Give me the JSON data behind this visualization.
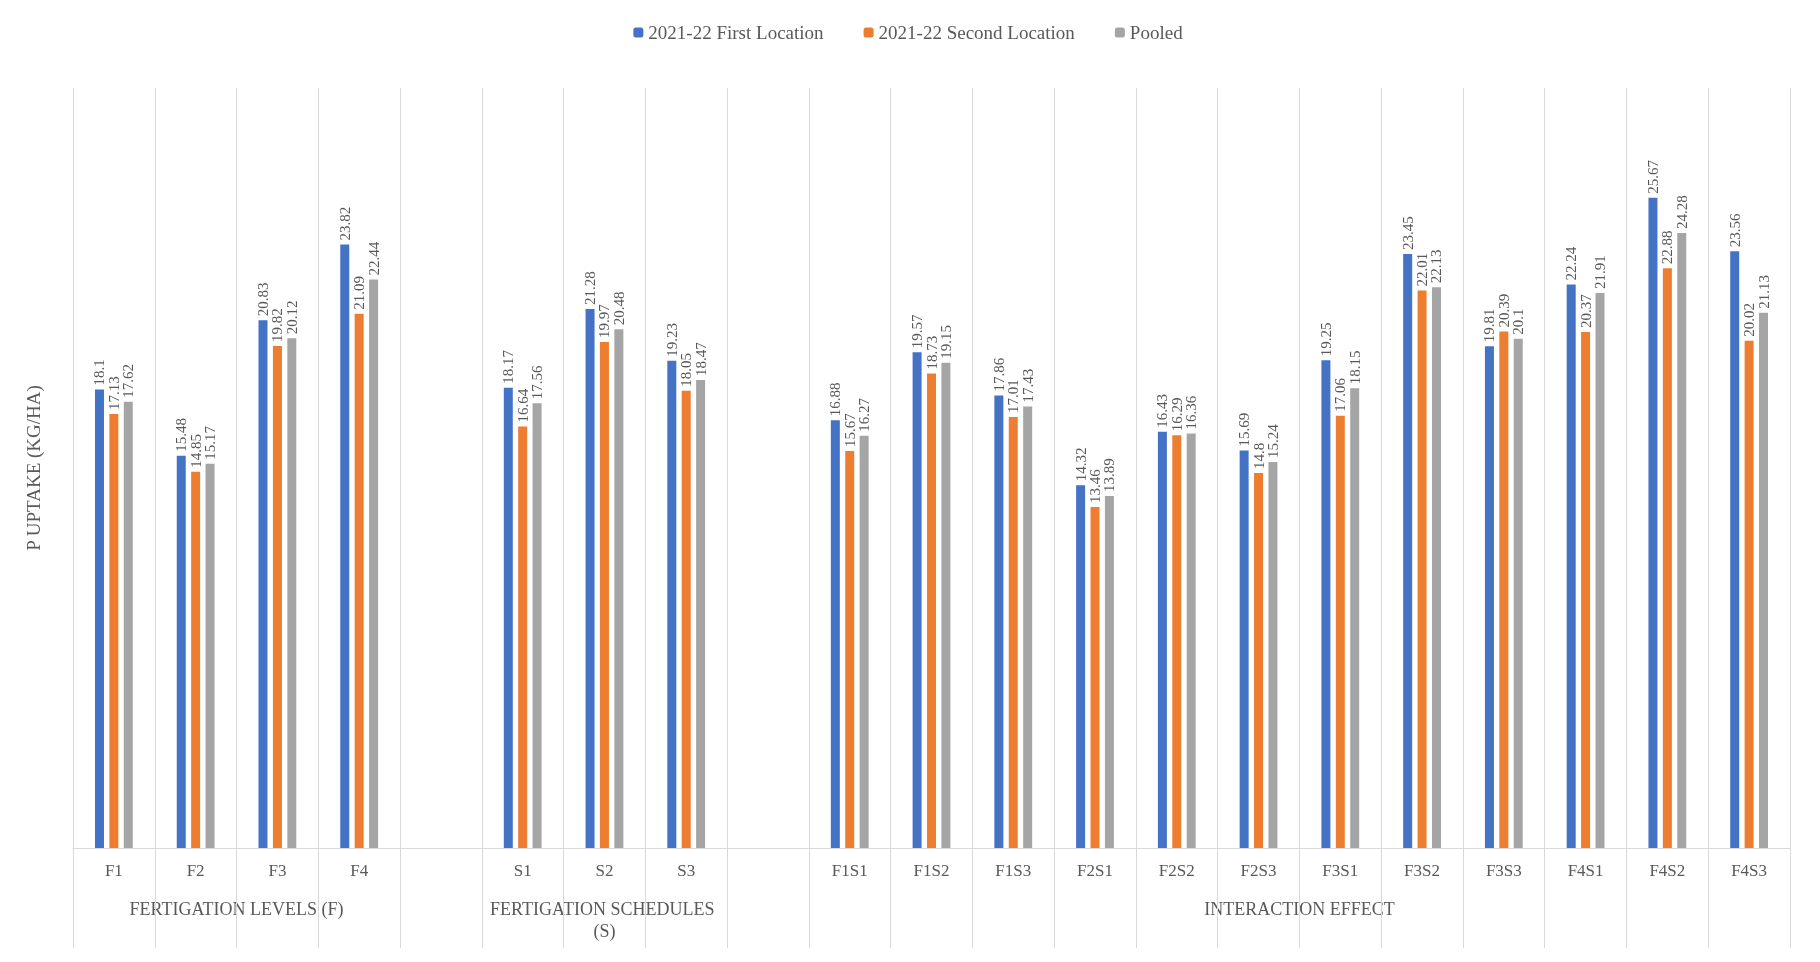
{
  "chart_data": {
    "type": "bar",
    "ylabel": "P UPTAKE (KG/HA)",
    "categories": [
      "F1",
      "F2",
      "F3",
      "F4",
      null,
      "S1",
      "S2",
      "S3",
      null,
      "F1S1",
      "F1S2",
      "F1S3",
      "F2S1",
      "F2S2",
      "F2S3",
      "F3S1",
      "F3S2",
      "F3S3",
      "F4S1",
      "F4S2",
      "F4S3"
    ],
    "series": [
      {
        "name": "2021-22 First Location",
        "color": "#4472c4",
        "values": [
          18.1,
          15.48,
          20.83,
          23.82,
          null,
          18.17,
          21.28,
          19.23,
          null,
          16.88,
          19.57,
          17.86,
          14.32,
          16.43,
          15.69,
          19.25,
          23.45,
          19.81,
          22.24,
          25.67,
          23.56
        ]
      },
      {
        "name": "2021-22 Second Location",
        "color": "#ed7d31",
        "values": [
          17.13,
          14.85,
          19.82,
          21.09,
          null,
          16.64,
          19.97,
          18.05,
          null,
          15.67,
          18.73,
          17.01,
          13.46,
          16.29,
          14.8,
          17.06,
          22.01,
          20.39,
          20.37,
          22.88,
          20.02
        ]
      },
      {
        "name": "Pooled",
        "color": "#a5a5a5",
        "values": [
          17.62,
          15.17,
          20.12,
          22.44,
          null,
          17.56,
          20.48,
          18.47,
          null,
          16.27,
          19.15,
          17.43,
          13.89,
          16.36,
          15.24,
          18.15,
          22.13,
          20.1,
          21.91,
          24.28,
          21.13
        ]
      }
    ],
    "annotations": [
      "FERTIGATION LEVELS (F)",
      "FERTIGATION SCHEDULES (S)",
      "INTERACTION EFFECT"
    ],
    "ylim": [
      0,
      30
    ],
    "tick_labels": "x",
    "grid": "x",
    "legend": "top",
    "data_labels": true
  }
}
